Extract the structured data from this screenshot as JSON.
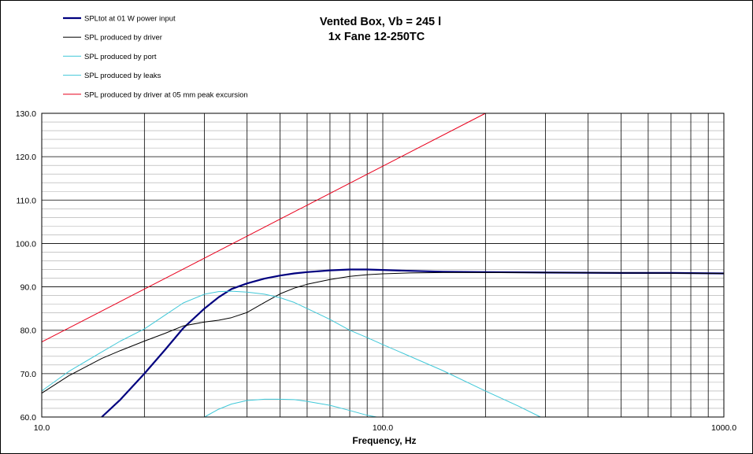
{
  "chart_data": {
    "type": "line",
    "title_lines": [
      "Vented Box, Vb = 245 l",
      "1x Fane 12-250TC"
    ],
    "xlabel": "Frequency, Hz",
    "ylabel": "",
    "x_scale": "log",
    "xlim": [
      10,
      1000
    ],
    "ylim": [
      60,
      130
    ],
    "x_tick_labels": [
      {
        "value": 10,
        "label": "10.0"
      },
      {
        "value": 100,
        "label": "100.0"
      },
      {
        "value": 1000,
        "label": "1000.0"
      }
    ],
    "y_tick_labels": [
      {
        "value": 130,
        "label": "130.0"
      },
      {
        "value": 120,
        "label": "120.0"
      },
      {
        "value": 110,
        "label": "110.0"
      },
      {
        "value": 100,
        "label": "100.0"
      },
      {
        "value": 90,
        "label": "90.0"
      },
      {
        "value": 80,
        "label": "80.0"
      },
      {
        "value": 70,
        "label": "70.0"
      },
      {
        "value": 60,
        "label": "60.0"
      }
    ],
    "grid": true,
    "legend_position": "top-left",
    "series": [
      {
        "name": "SPLtot at 01 W power input",
        "color": "#00007f",
        "width": 2.2,
        "points": [
          [
            15,
            60
          ],
          [
            17,
            64
          ],
          [
            20,
            70
          ],
          [
            23,
            75.5
          ],
          [
            26,
            80.5
          ],
          [
            30,
            85
          ],
          [
            33,
            87.6
          ],
          [
            36,
            89.5
          ],
          [
            40,
            90.8
          ],
          [
            45,
            91.9
          ],
          [
            50,
            92.6
          ],
          [
            55,
            93.1
          ],
          [
            60,
            93.4
          ],
          [
            70,
            93.8
          ],
          [
            80,
            94
          ],
          [
            90,
            94
          ],
          [
            100,
            93.9
          ],
          [
            120,
            93.7
          ],
          [
            150,
            93.5
          ],
          [
            200,
            93.4
          ],
          [
            300,
            93.3
          ],
          [
            500,
            93.2
          ],
          [
            700,
            93.2
          ],
          [
            1000,
            93.1
          ]
        ]
      },
      {
        "name": "SPL produced by driver",
        "color": "#000000",
        "width": 1,
        "points": [
          [
            10,
            65.5
          ],
          [
            12,
            69.5
          ],
          [
            15,
            73.5
          ],
          [
            17,
            75.3
          ],
          [
            20,
            77.5
          ],
          [
            23,
            79.3
          ],
          [
            26,
            81
          ],
          [
            30,
            81.9
          ],
          [
            33,
            82.3
          ],
          [
            36,
            82.9
          ],
          [
            40,
            84.1
          ],
          [
            45,
            86.4
          ],
          [
            50,
            88.4
          ],
          [
            55,
            89.7
          ],
          [
            60,
            90.6
          ],
          [
            70,
            91.7
          ],
          [
            80,
            92.4
          ],
          [
            90,
            92.8
          ],
          [
            100,
            93
          ],
          [
            120,
            93.2
          ],
          [
            150,
            93.3
          ],
          [
            200,
            93.3
          ],
          [
            300,
            93.3
          ],
          [
            500,
            93.2
          ],
          [
            1000,
            93.1
          ]
        ]
      },
      {
        "name": "SPL produced by port",
        "color": "#40c8d8",
        "width": 1,
        "points": [
          [
            10,
            66
          ],
          [
            12,
            70.5
          ],
          [
            15,
            75
          ],
          [
            17,
            77.5
          ],
          [
            20,
            80.3
          ],
          [
            23,
            83.5
          ],
          [
            26,
            86.3
          ],
          [
            30,
            88.3
          ],
          [
            33,
            88.9
          ],
          [
            36,
            89
          ],
          [
            40,
            88.8
          ],
          [
            45,
            88.3
          ],
          [
            50,
            87.5
          ],
          [
            55,
            86.4
          ],
          [
            60,
            85
          ],
          [
            70,
            82.5
          ],
          [
            80,
            80
          ],
          [
            90,
            78.3
          ],
          [
            100,
            76.7
          ],
          [
            150,
            70.7
          ],
          [
            200,
            66
          ],
          [
            250,
            62.5
          ],
          [
            290,
            60
          ]
        ]
      },
      {
        "name": "SPL produced by leaks",
        "color": "#40c8d8",
        "width": 1,
        "points": [
          [
            30,
            60
          ],
          [
            33,
            61.8
          ],
          [
            36,
            63
          ],
          [
            40,
            63.8
          ],
          [
            45,
            64.1
          ],
          [
            50,
            64.1
          ],
          [
            55,
            64
          ],
          [
            60,
            63.6
          ],
          [
            70,
            62.7
          ],
          [
            80,
            61.5
          ],
          [
            90,
            60.4
          ],
          [
            96,
            60
          ]
        ]
      },
      {
        "name": "SPL produced by driver at 05 mm peak excursion",
        "color": "#e8001c",
        "width": 1,
        "points": [
          [
            10,
            77.3
          ],
          [
            200,
            130
          ]
        ]
      }
    ]
  }
}
